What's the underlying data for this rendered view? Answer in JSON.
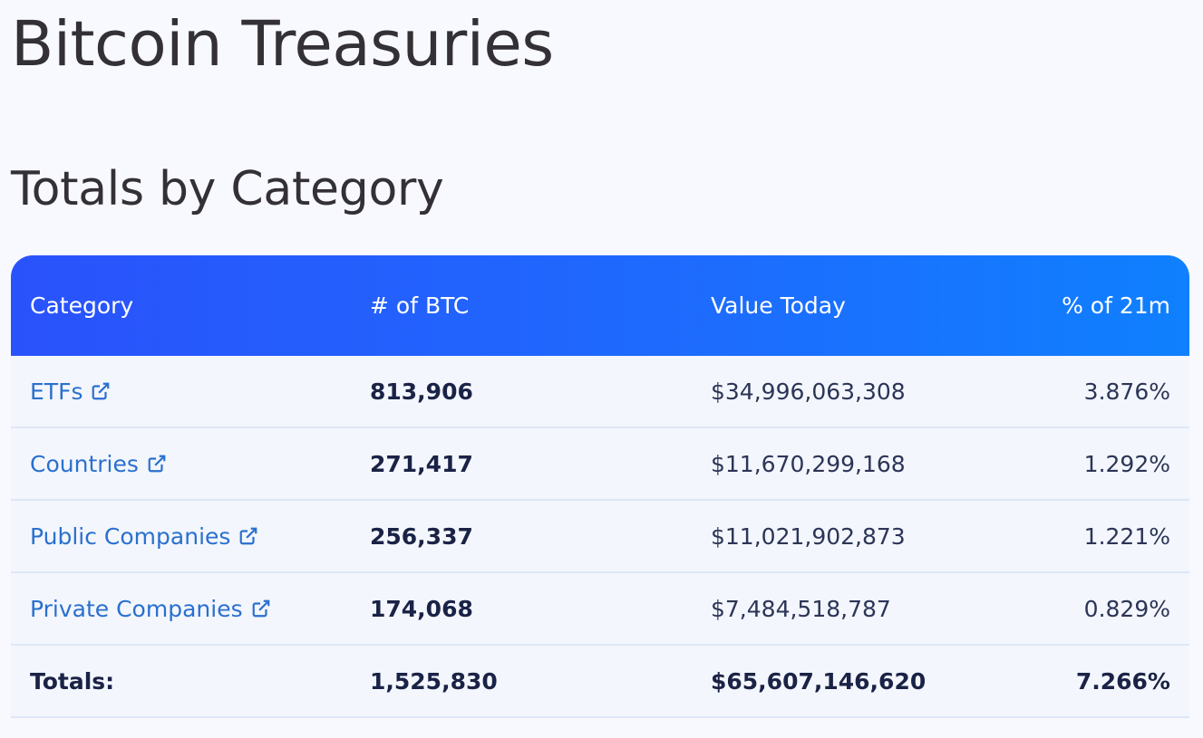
{
  "page": {
    "title": "Bitcoin Treasuries",
    "section_title": "Totals by Category"
  },
  "table": {
    "headers": {
      "category": "Category",
      "btc": "# of BTC",
      "value": "Value Today",
      "percent": "% of 21m"
    },
    "rows": [
      {
        "category": "ETFs",
        "btc": "813,906",
        "value": "$34,996,063,308",
        "percent": "3.876%",
        "icon": "external-link-icon"
      },
      {
        "category": "Countries",
        "btc": "271,417",
        "value": "$11,670,299,168",
        "percent": "1.292%",
        "icon": "external-link-icon"
      },
      {
        "category": "Public Companies",
        "btc": "256,337",
        "value": "$11,021,902,873",
        "percent": "1.221%",
        "icon": "external-link-icon"
      },
      {
        "category": "Private Companies",
        "btc": "174,068",
        "value": "$7,484,518,787",
        "percent": "0.829%",
        "icon": "external-link-icon"
      }
    ],
    "totals": {
      "label": "Totals:",
      "btc": "1,525,830",
      "value": "$65,607,146,620",
      "percent": "7.266%"
    }
  },
  "colors": {
    "header_gradient_start": "#2a52fb",
    "header_gradient_end": "#0f80fe",
    "link": "#2a70cf",
    "background": "#f8f9fe"
  }
}
